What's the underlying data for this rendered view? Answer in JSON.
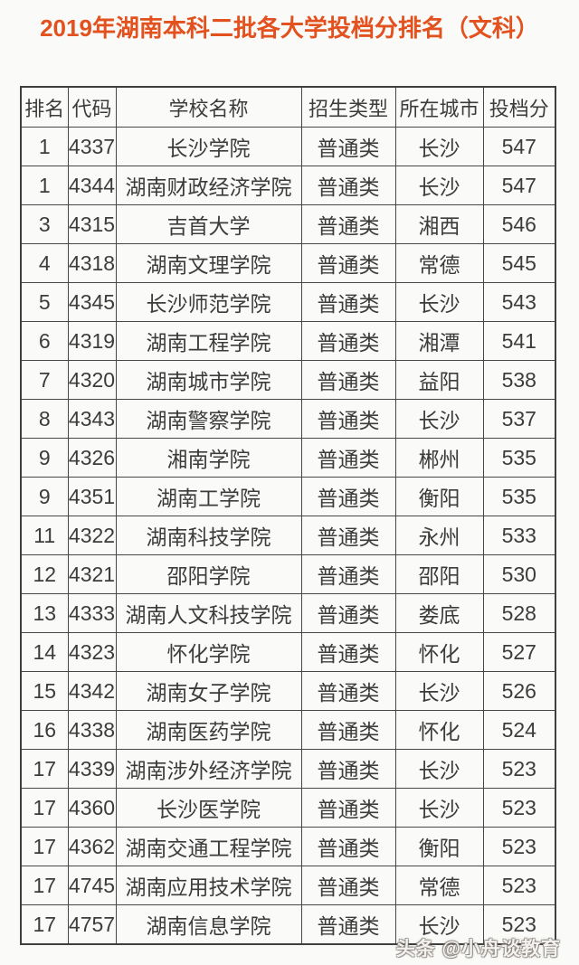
{
  "page": {
    "title": "2019年湖南本科二批各大学投档分排名（文科）",
    "watermark": "头条 @小舟谈教育"
  },
  "colors": {
    "title_accent": "#e2511e",
    "table_text": "#3c3c3c",
    "table_border": "#474747",
    "background": "#fafaf8",
    "watermark": "#faf8f6"
  },
  "table": {
    "headers": [
      "排名",
      "代码",
      "学校名称",
      "招生类型",
      "所在城市",
      "投档分"
    ],
    "column_keys": [
      "rank",
      "code",
      "school",
      "type",
      "city",
      "score"
    ],
    "rows": [
      {
        "rank": "1",
        "code": "4337",
        "school": "长沙学院",
        "type": "普通类",
        "city": "长沙",
        "score": "547"
      },
      {
        "rank": "1",
        "code": "4344",
        "school": "湖南财政经济学院",
        "type": "普通类",
        "city": "长沙",
        "score": "547"
      },
      {
        "rank": "3",
        "code": "4315",
        "school": "吉首大学",
        "type": "普通类",
        "city": "湘西",
        "score": "546"
      },
      {
        "rank": "4",
        "code": "4318",
        "school": "湖南文理学院",
        "type": "普通类",
        "city": "常德",
        "score": "545"
      },
      {
        "rank": "5",
        "code": "4345",
        "school": "长沙师范学院",
        "type": "普通类",
        "city": "长沙",
        "score": "543"
      },
      {
        "rank": "6",
        "code": "4319",
        "school": "湖南工程学院",
        "type": "普通类",
        "city": "湘潭",
        "score": "541"
      },
      {
        "rank": "7",
        "code": "4320",
        "school": "湖南城市学院",
        "type": "普通类",
        "city": "益阳",
        "score": "538"
      },
      {
        "rank": "8",
        "code": "4343",
        "school": "湖南警察学院",
        "type": "普通类",
        "city": "长沙",
        "score": "537"
      },
      {
        "rank": "9",
        "code": "4326",
        "school": "湘南学院",
        "type": "普通类",
        "city": "郴州",
        "score": "535"
      },
      {
        "rank": "9",
        "code": "4351",
        "school": "湖南工学院",
        "type": "普通类",
        "city": "衡阳",
        "score": "535"
      },
      {
        "rank": "11",
        "code": "4322",
        "school": "湖南科技学院",
        "type": "普通类",
        "city": "永州",
        "score": "533"
      },
      {
        "rank": "12",
        "code": "4321",
        "school": "邵阳学院",
        "type": "普通类",
        "city": "邵阳",
        "score": "530"
      },
      {
        "rank": "13",
        "code": "4333",
        "school": "湖南人文科技学院",
        "type": "普通类",
        "city": "娄底",
        "score": "528"
      },
      {
        "rank": "14",
        "code": "4323",
        "school": "怀化学院",
        "type": "普通类",
        "city": "怀化",
        "score": "527"
      },
      {
        "rank": "15",
        "code": "4342",
        "school": "湖南女子学院",
        "type": "普通类",
        "city": "长沙",
        "score": "526"
      },
      {
        "rank": "16",
        "code": "4338",
        "school": "湖南医药学院",
        "type": "普通类",
        "city": "怀化",
        "score": "524"
      },
      {
        "rank": "17",
        "code": "4339",
        "school": "湖南涉外经济学院",
        "type": "普通类",
        "city": "长沙",
        "score": "523"
      },
      {
        "rank": "17",
        "code": "4360",
        "school": "长沙医学院",
        "type": "普通类",
        "city": "长沙",
        "score": "523"
      },
      {
        "rank": "17",
        "code": "4362",
        "school": "湖南交通工程学院",
        "type": "普通类",
        "city": "衡阳",
        "score": "523"
      },
      {
        "rank": "17",
        "code": "4745",
        "school": "湖南应用技术学院",
        "type": "普通类",
        "city": "常德",
        "score": "523"
      },
      {
        "rank": "17",
        "code": "4757",
        "school": "湖南信息学院",
        "type": "普通类",
        "city": "长沙",
        "score": "523"
      }
    ]
  },
  "chart_data": {
    "type": "table",
    "title": "2019年湖南本科二批各大学投档分排名（文科）",
    "columns": [
      "排名",
      "代码",
      "学校名称",
      "招生类型",
      "所在城市",
      "投档分"
    ],
    "rows": [
      [
        1,
        4337,
        "长沙学院",
        "普通类",
        "长沙",
        547
      ],
      [
        1,
        4344,
        "湖南财政经济学院",
        "普通类",
        "长沙",
        547
      ],
      [
        3,
        4315,
        "吉首大学",
        "普通类",
        "湘西",
        546
      ],
      [
        4,
        4318,
        "湖南文理学院",
        "普通类",
        "常德",
        545
      ],
      [
        5,
        4345,
        "长沙师范学院",
        "普通类",
        "长沙",
        543
      ],
      [
        6,
        4319,
        "湖南工程学院",
        "普通类",
        "湘潭",
        541
      ],
      [
        7,
        4320,
        "湖南城市学院",
        "普通类",
        "益阳",
        538
      ],
      [
        8,
        4343,
        "湖南警察学院",
        "普通类",
        "长沙",
        537
      ],
      [
        9,
        4326,
        "湘南学院",
        "普通类",
        "郴州",
        535
      ],
      [
        9,
        4351,
        "湖南工学院",
        "普通类",
        "衡阳",
        535
      ],
      [
        11,
        4322,
        "湖南科技学院",
        "普通类",
        "永州",
        533
      ],
      [
        12,
        4321,
        "邵阳学院",
        "普通类",
        "邵阳",
        530
      ],
      [
        13,
        4333,
        "湖南人文科技学院",
        "普通类",
        "娄底",
        528
      ],
      [
        14,
        4323,
        "怀化学院",
        "普通类",
        "怀化",
        527
      ],
      [
        15,
        4342,
        "湖南女子学院",
        "普通类",
        "长沙",
        526
      ],
      [
        16,
        4338,
        "湖南医药学院",
        "普通类",
        "怀化",
        524
      ],
      [
        17,
        4339,
        "湖南涉外经济学院",
        "普通类",
        "长沙",
        523
      ],
      [
        17,
        4360,
        "长沙医学院",
        "普通类",
        "长沙",
        523
      ],
      [
        17,
        4362,
        "湖南交通工程学院",
        "普通类",
        "衡阳",
        523
      ],
      [
        17,
        4745,
        "湖南应用技术学院",
        "普通类",
        "常德",
        523
      ],
      [
        17,
        4757,
        "湖南信息学院",
        "普通类",
        "长沙",
        523
      ]
    ]
  }
}
